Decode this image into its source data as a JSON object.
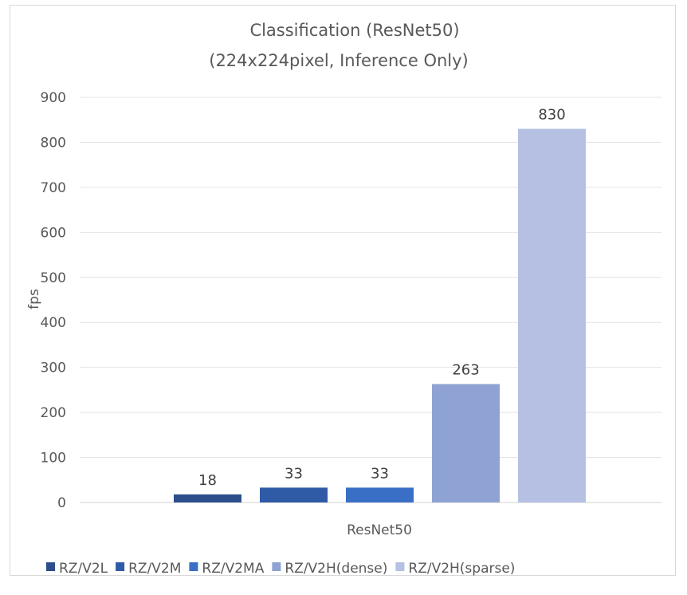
{
  "chart_data": {
    "type": "bar",
    "title": [
      "Classification (ResNet50)",
      "(224x224pixel, Inference Only)"
    ],
    "xlabel": "ResNet50",
    "ylabel": "fps",
    "ylim": [
      0,
      900
    ],
    "yticks": [
      0,
      100,
      200,
      300,
      400,
      500,
      600,
      700,
      800,
      900
    ],
    "categories": [
      "ResNet50"
    ],
    "grid": true,
    "legend_position": "bottom",
    "series": [
      {
        "name": "RZ/V2L",
        "values": [
          18
        ],
        "color": "#2c4f8c"
      },
      {
        "name": "RZ/V2M",
        "values": [
          33
        ],
        "color": "#2f5ba6"
      },
      {
        "name": "RZ/V2MA",
        "values": [
          33
        ],
        "color": "#3a6fc6"
      },
      {
        "name": "RZ/V2H(dense)",
        "values": [
          263
        ],
        "color": "#8ea3d3"
      },
      {
        "name": "RZ/V2H(sparse)",
        "values": [
          830
        ],
        "color": "#b5c0e2"
      }
    ]
  }
}
